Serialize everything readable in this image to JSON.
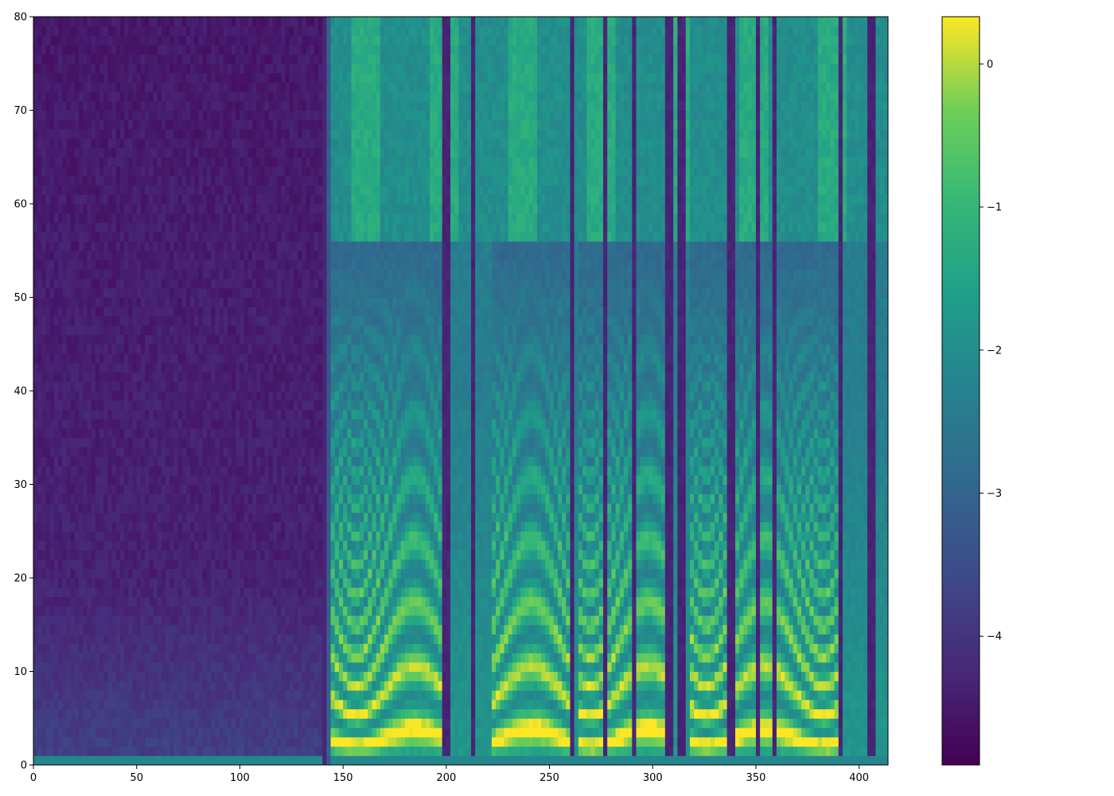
{
  "chart_data": {
    "type": "heatmap",
    "title": "",
    "xlabel": "",
    "ylabel": "",
    "xlim": [
      0,
      414
    ],
    "ylim": [
      0,
      80
    ],
    "x_ticks": [
      "0",
      "50",
      "100",
      "150",
      "200",
      "250",
      "300",
      "350",
      "400"
    ],
    "y_ticks": [
      "0",
      "10",
      "20",
      "30",
      "40",
      "50",
      "60",
      "70",
      "80"
    ],
    "colormap": "viridis",
    "colorbar": {
      "range": [
        -4.9,
        0.33
      ],
      "ticks": [
        "0",
        "−1",
        "−2",
        "−3",
        "−4"
      ]
    },
    "grid": false,
    "silence_end_frame": 140,
    "noise_floor_value": -4.3,
    "voiced_regions": [
      [
        143,
        200
      ],
      [
        222,
        262
      ],
      [
        264,
        306
      ],
      [
        318,
        392
      ]
    ],
    "dark_column_frames": [
      199,
      212,
      260,
      276,
      290,
      307,
      313,
      337,
      350,
      358,
      390,
      405
    ]
  },
  "colors": {
    "viridis_low": "#440154",
    "viridis_mid": "#21918c",
    "viridis_high": "#fde725"
  }
}
